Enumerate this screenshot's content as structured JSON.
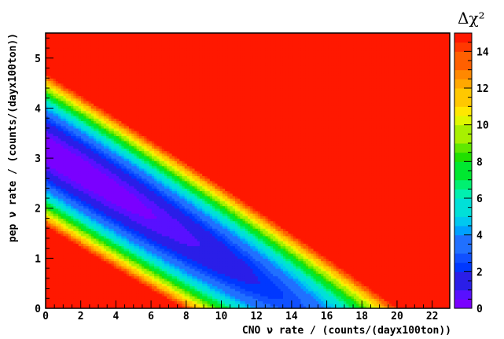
{
  "chart_data": {
    "type": "heatmap",
    "title": "",
    "xlabel": "CNO ν rate / (counts/(dayx100ton))",
    "ylabel": "pep ν rate / (counts/(dayx100ton))",
    "xlim": [
      0,
      23
    ],
    "ylim": [
      0,
      5.5
    ],
    "x_ticks": [
      0,
      2,
      4,
      6,
      8,
      10,
      12,
      14,
      16,
      18,
      20,
      22
    ],
    "y_ticks": [
      0,
      1,
      2,
      3,
      4,
      5
    ],
    "colorbar": {
      "label": "Δχ²",
      "range": [
        0,
        15
      ],
      "ticks": [
        0,
        2,
        4,
        6,
        8,
        10,
        12,
        14
      ]
    },
    "minimum": {
      "x": 1,
      "y": 3.0,
      "value": 0
    },
    "contour_levels": [
      0,
      0.5,
      1,
      1.5,
      2,
      2.5,
      3,
      3.5,
      4,
      4.5,
      5,
      5.5,
      6,
      6.5,
      7,
      7.5,
      8,
      8.5,
      9,
      9.5,
      10,
      10.5,
      11,
      11.5,
      12,
      12.5,
      13,
      13.5,
      14,
      14.5,
      15
    ],
    "palette": [
      "#7a00ff",
      "#5810ff",
      "#2a1ee8",
      "#0038ff",
      "#1050ff",
      "#2070ff",
      "#00a0ff",
      "#00c8f0",
      "#00e0d8",
      "#00f0b0",
      "#00f070",
      "#00e830",
      "#20e000",
      "#60e800",
      "#a8f000",
      "#e0f800",
      "#ffe800",
      "#ffc800",
      "#ffa800",
      "#ff8800",
      "#ff6000",
      "#ff3800",
      "#ff1a00"
    ],
    "saturated_color": "#ff1800"
  }
}
